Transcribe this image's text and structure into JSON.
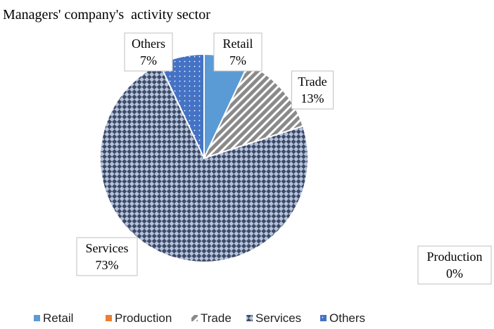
{
  "chart_data": {
    "type": "pie",
    "title": "Managers' company's  activity sector",
    "categories": [
      "Retail",
      "Production",
      "Trade",
      "Services",
      "Others"
    ],
    "values": [
      7,
      0,
      13,
      73,
      7
    ],
    "value_labels": [
      "7%",
      "0%",
      "13%",
      "73%",
      "7%"
    ],
    "colors": [
      "#5b9bd5",
      "#ed7d31",
      "#8a8a8a",
      "#3f4a66",
      "#4472c4"
    ],
    "patterns": [
      "solid",
      "solid",
      "stripes",
      "checker",
      "dots"
    ],
    "legend": "bottom"
  }
}
